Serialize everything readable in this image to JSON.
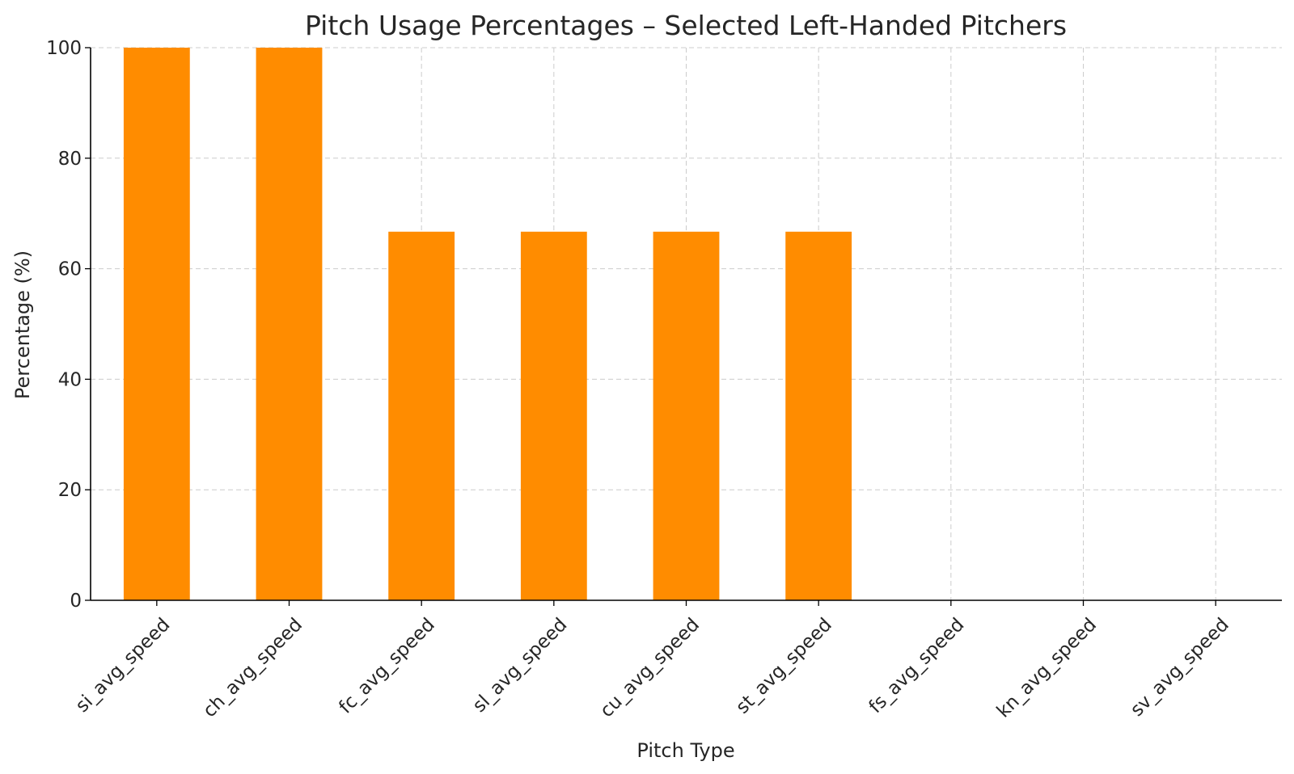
{
  "chart_data": {
    "type": "bar",
    "title": "Pitch Usage Percentages – Selected Left-Handed Pitchers",
    "xlabel": "Pitch Type",
    "ylabel": "Percentage (%)",
    "categories": [
      "si_avg_speed",
      "ch_avg_speed",
      "fc_avg_speed",
      "sl_avg_speed",
      "cu_avg_speed",
      "st_avg_speed",
      "fs_avg_speed",
      "kn_avg_speed",
      "sv_avg_speed"
    ],
    "values": [
      100,
      100,
      66.7,
      66.7,
      66.7,
      66.7,
      0,
      0,
      0
    ],
    "ylim": [
      0,
      100
    ],
    "yticks": [
      0,
      20,
      40,
      60,
      80,
      100
    ],
    "grid": true,
    "bar_color": "#ff8c00"
  }
}
